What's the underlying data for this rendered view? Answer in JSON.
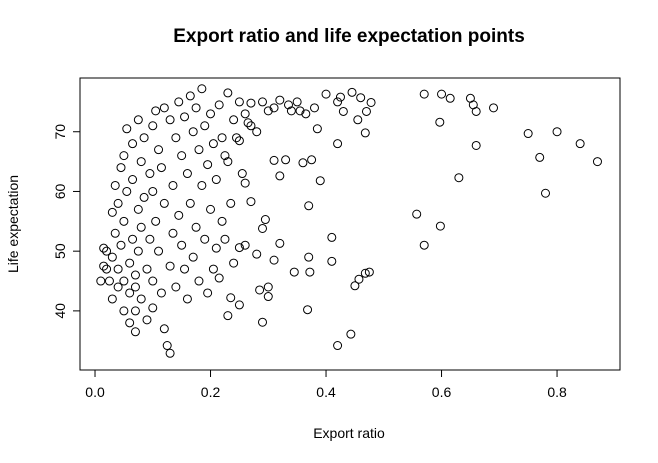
{
  "chart_data": {
    "type": "scatter",
    "title": "Export ratio and life expectation points",
    "x_label": "Export ratio",
    "y_label": "Life expectation",
    "xlim": [
      -0.026,
      0.909
    ],
    "ylim": [
      30.1,
      79.0
    ],
    "xticks": [
      {
        "value": 0,
        "label": "0.0"
      },
      0.2,
      0.4,
      0.6,
      0.8
    ],
    "yticks": [
      40,
      50,
      60,
      70
    ],
    "color": "#000000",
    "x": [
      0.87,
      0.84,
      0.8,
      0.78,
      0.77,
      0.75,
      0.69,
      0.66,
      0.66,
      0.655,
      0.65,
      0.63,
      0.615,
      0.6,
      0.597,
      0.598,
      0.57,
      0.57,
      0.557,
      0.478,
      0.47,
      0.468,
      0.46,
      0.475,
      0.468,
      0.457,
      0.45,
      0.443,
      0.445,
      0.42,
      0.41,
      0.41,
      0.42,
      0.42,
      0.425,
      0.43,
      0.455,
      0.39,
      0.4,
      0.37,
      0.375,
      0.372,
      0.37,
      0.368,
      0.345,
      0.36,
      0.365,
      0.35,
      0.34,
      0.33,
      0.32,
      0.31,
      0.32,
      0.31,
      0.3,
      0.3,
      0.29,
      0.285,
      0.29,
      0.295,
      0.27,
      0.265,
      0.26,
      0.255,
      0.25,
      0.25,
      0.235,
      0.23,
      0.01,
      0.015,
      0.015,
      0.02,
      0.02,
      0.025,
      0.03,
      0.03,
      0.03,
      0.035,
      0.035,
      0.04,
      0.04,
      0.04,
      0.045,
      0.045,
      0.05,
      0.05,
      0.05,
      0.05,
      0.055,
      0.055,
      0.06,
      0.06,
      0.06,
      0.065,
      0.065,
      0.065,
      0.07,
      0.07,
      0.07,
      0.07,
      0.075,
      0.075,
      0.075,
      0.08,
      0.08,
      0.08,
      0.085,
      0.085,
      0.09,
      0.09,
      0.095,
      0.095,
      0.1,
      0.1,
      0.1,
      0.1,
      0.105,
      0.105,
      0.11,
      0.11,
      0.115,
      0.115,
      0.12,
      0.12,
      0.12,
      0.125,
      0.13,
      0.13,
      0.13,
      0.135,
      0.135,
      0.14,
      0.14,
      0.145,
      0.145,
      0.15,
      0.15,
      0.155,
      0.155,
      0.16,
      0.16,
      0.165,
      0.165,
      0.17,
      0.17,
      0.175,
      0.175,
      0.18,
      0.18,
      0.185,
      0.185,
      0.19,
      0.19,
      0.195,
      0.195,
      0.2,
      0.2,
      0.205,
      0.205,
      0.21,
      0.21,
      0.215,
      0.215,
      0.22,
      0.22,
      0.225,
      0.225,
      0.23,
      0.23,
      0.235,
      0.24,
      0.24,
      0.245,
      0.25,
      0.25,
      0.26,
      0.26,
      0.27,
      0.27,
      0.28,
      0.28,
      0.29,
      0.3,
      0.31,
      0.32,
      0.335,
      0.355,
      0.38,
      0.385
    ],
    "values": [
      65,
      68,
      70,
      59.7,
      65.7,
      69.7,
      74,
      73.4,
      67.7,
      74.5,
      75.6,
      62.3,
      75.6,
      76.3,
      71.6,
      54.2,
      76.3,
      51,
      56.2,
      74.9,
      73.4,
      69.8,
      75.7,
      46.5,
      46.3,
      45.3,
      44.2,
      36.1,
      76.6,
      34.2,
      52.3,
      48.3,
      68,
      75,
      75.8,
      73.4,
      72,
      61.8,
      76.3,
      57.6,
      65.3,
      46.5,
      49,
      40.2,
      46.5,
      64.8,
      73,
      75,
      73.5,
      65.3,
      62.6,
      65.2,
      51.3,
      48.5,
      44,
      42.4,
      38.1,
      43.5,
      53.8,
      55.3,
      58.3,
      71.5,
      61.4,
      63,
      50.6,
      41,
      42.2,
      39.2,
      45,
      47.5,
      50.5,
      47,
      50,
      45,
      56.5,
      49,
      42,
      53,
      61,
      58,
      47,
      44,
      64,
      51,
      66,
      55,
      45,
      40,
      70.5,
      60,
      48,
      43,
      38,
      68,
      62,
      52,
      46,
      44,
      40,
      36.5,
      72,
      57,
      50,
      65,
      54,
      42,
      69,
      59,
      47,
      38.5,
      63,
      52,
      71,
      60,
      45,
      40.5,
      73.5,
      55,
      67,
      50,
      64,
      43,
      74,
      58,
      37,
      34.2,
      72,
      47.5,
      32.9,
      61,
      53,
      69,
      44,
      75,
      56,
      66,
      51,
      72.5,
      47,
      63,
      42,
      76,
      58,
      70,
      49,
      74,
      54,
      67,
      45,
      77.2,
      61,
      71,
      52,
      64.5,
      43,
      73,
      57,
      68,
      47,
      62,
      50.5,
      74.5,
      45.5,
      69,
      55,
      66,
      52,
      76.5,
      65,
      58,
      72,
      48,
      69,
      75,
      68.5,
      73,
      51,
      74.8,
      71,
      70,
      49.5,
      75,
      73.5,
      74,
      75.3,
      74.5,
      73.5,
      74,
      70.5
    ]
  }
}
